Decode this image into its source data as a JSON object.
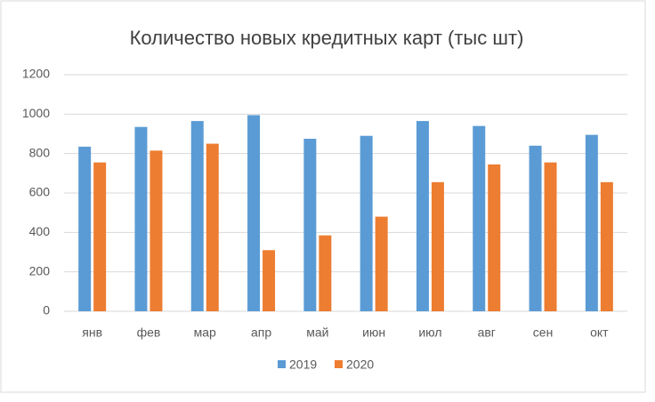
{
  "chart_data": {
    "type": "bar",
    "title": "Количество новых кредитных карт (тыс шт)",
    "categories": [
      "янв",
      "фев",
      "мар",
      "апр",
      "май",
      "июн",
      "июл",
      "авг",
      "сен",
      "окт"
    ],
    "series": [
      {
        "name": "2019",
        "color": "#5b9bd5",
        "values": [
          835,
          935,
          965,
          995,
          875,
          890,
          965,
          940,
          840,
          895
        ]
      },
      {
        "name": "2020",
        "color": "#ed7d31",
        "values": [
          755,
          815,
          850,
          310,
          385,
          480,
          655,
          745,
          755,
          655
        ]
      }
    ],
    "ylim": [
      0,
      1200
    ],
    "yticks": [
      0,
      200,
      400,
      600,
      800,
      1000,
      1200
    ],
    "grid": true,
    "legend": "bottom"
  }
}
